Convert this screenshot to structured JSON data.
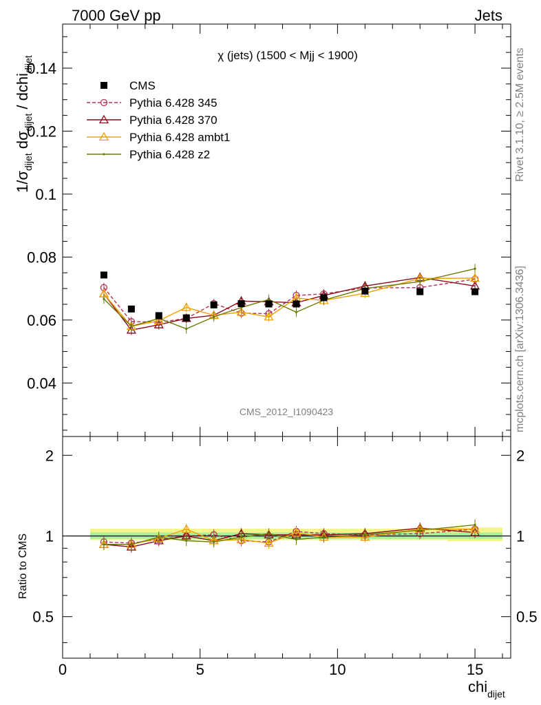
{
  "header": {
    "left": "7000 GeV pp",
    "right": "Jets"
  },
  "side_text": {
    "rivet": "Rivet 3.1.10, ≥ 2.5M events",
    "mcplots": "mcplots.cern.ch [arXiv:1306.3436]"
  },
  "watermark": "CMS_2012_I1090423",
  "chart_data": [
    {
      "type": "line",
      "title": "χ (jets) (1500 < Mjj < 1900)",
      "ylabel": "1/σdijet dσdijet / dchidijet",
      "xlim": [
        0,
        16.3
      ],
      "ylim": [
        0.023,
        0.154
      ],
      "yticks": [
        0.04,
        0.06,
        0.08,
        0.1,
        0.12,
        0.14
      ],
      "x": [
        1.5,
        2.5,
        3.5,
        4.5,
        5.5,
        6.5,
        7.5,
        8.5,
        9.5,
        11,
        13,
        15
      ],
      "series": [
        {
          "name": "CMS",
          "color": "#000000",
          "marker": "square",
          "values": [
            0.0743,
            0.0635,
            0.0614,
            0.0607,
            0.0648,
            0.0652,
            0.0651,
            0.0651,
            0.0671,
            0.0692,
            0.069,
            0.069
          ]
        },
        {
          "name": "Pythia 6.428 345",
          "color": "#b03050",
          "marker": "circle",
          "dashed": true,
          "values": [
            0.0703,
            0.0595,
            0.0593,
            0.0605,
            0.0652,
            0.0622,
            0.062,
            0.0678,
            0.0683,
            0.0702,
            0.0703,
            0.073
          ]
        },
        {
          "name": "Pythia 6.428 370",
          "color": "#8b0a1a",
          "marker": "triangle",
          "values": [
            0.0683,
            0.0568,
            0.0585,
            0.0605,
            0.0615,
            0.066,
            0.0658,
            0.0655,
            0.0678,
            0.0708,
            0.0735,
            0.0708
          ]
        },
        {
          "name": "Pythia 6.428 ambt1",
          "color": "#f0a000",
          "marker": "triangle",
          "values": [
            0.0683,
            0.058,
            0.0598,
            0.064,
            0.0615,
            0.0625,
            0.061,
            0.067,
            0.0662,
            0.0685,
            0.0732,
            0.0733
          ]
        },
        {
          "name": "Pythia 6.428 z2",
          "color": "#6b7a00",
          "marker": "dot",
          "values": [
            0.0667,
            0.058,
            0.0605,
            0.0572,
            0.061,
            0.064,
            0.0665,
            0.0625,
            0.0663,
            0.07,
            0.0722,
            0.0763
          ]
        }
      ]
    },
    {
      "type": "line",
      "ylabel": "Ratio to CMS",
      "xlabel": "chidijet",
      "xlim": [
        0,
        16.3
      ],
      "ylim": [
        0.35,
        2.35
      ],
      "yticks": [
        0.5,
        1,
        2
      ],
      "xticks": [
        0,
        5,
        10,
        15
      ],
      "x": [
        1.5,
        2.5,
        3.5,
        4.5,
        5.5,
        6.5,
        7.5,
        8.5,
        9.5,
        11,
        13,
        15
      ],
      "series": [
        {
          "name": "Pythia 6.428 345",
          "values": [
            0.95,
            0.94,
            0.97,
            1.0,
            1.01,
            0.96,
            0.95,
            1.04,
            1.02,
            1.01,
            1.02,
            1.06
          ]
        },
        {
          "name": "Pythia 6.428 370",
          "values": [
            0.93,
            0.91,
            0.96,
            1.0,
            0.96,
            1.02,
            1.01,
            1.01,
            1.01,
            1.02,
            1.07,
            1.03
          ]
        },
        {
          "name": "Pythia 6.428 ambt1",
          "values": [
            0.93,
            0.93,
            0.98,
            1.06,
            0.96,
            0.97,
            0.94,
            1.03,
            0.99,
            0.99,
            1.06,
            1.06
          ]
        },
        {
          "name": "Pythia 6.428 z2",
          "values": [
            0.93,
            0.93,
            0.99,
            0.96,
            0.95,
            0.99,
            1.02,
            0.97,
            0.99,
            1.01,
            1.05,
            1.1
          ]
        }
      ]
    }
  ]
}
